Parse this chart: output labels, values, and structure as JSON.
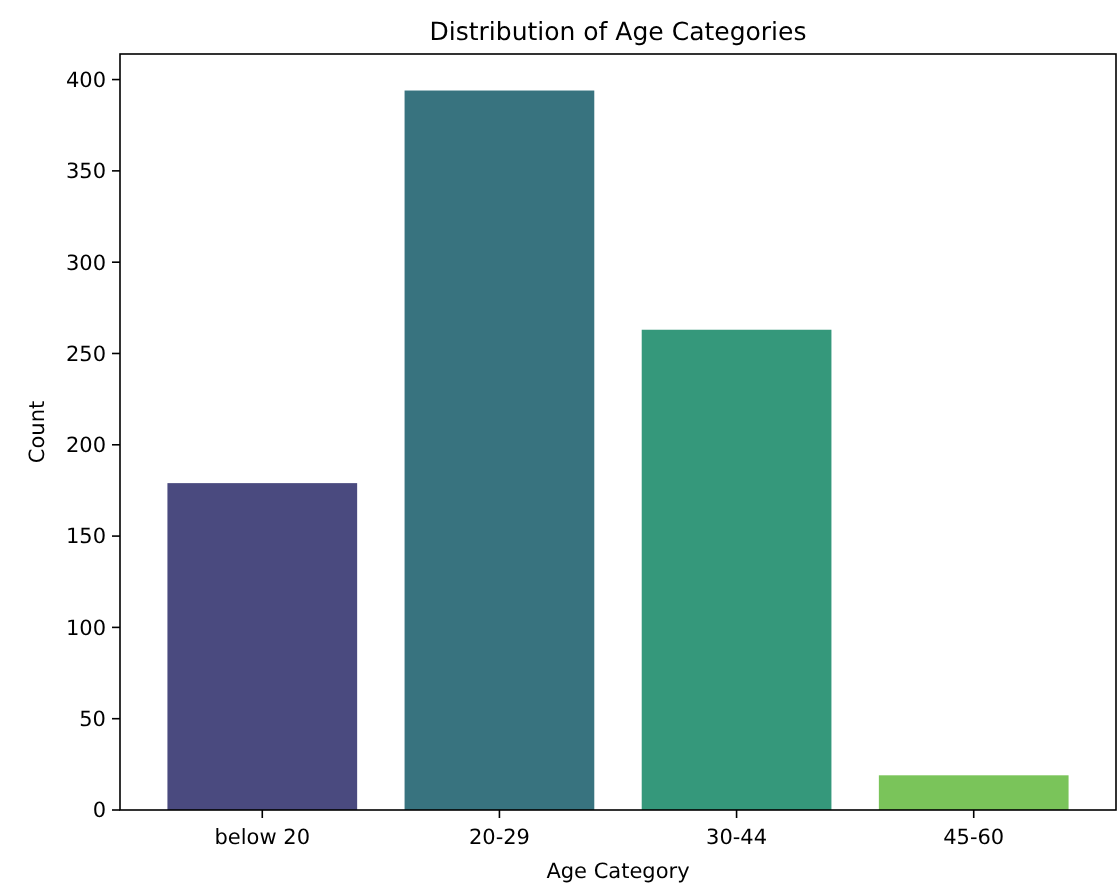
{
  "chart_data": {
    "type": "bar",
    "title": "Distribution of Age Categories",
    "xlabel": "Age Category",
    "ylabel": "Count",
    "categories": [
      "below 20",
      "20-29",
      "30-44",
      "45-60"
    ],
    "values": [
      179,
      394,
      263,
      19
    ],
    "colors": [
      "#4a4a7f",
      "#38737f",
      "#35987b",
      "#7ac45a"
    ],
    "ylim": [
      0,
      414
    ],
    "yticks": [
      0,
      50,
      100,
      150,
      200,
      250,
      300,
      350,
      400
    ],
    "grid": false
  }
}
